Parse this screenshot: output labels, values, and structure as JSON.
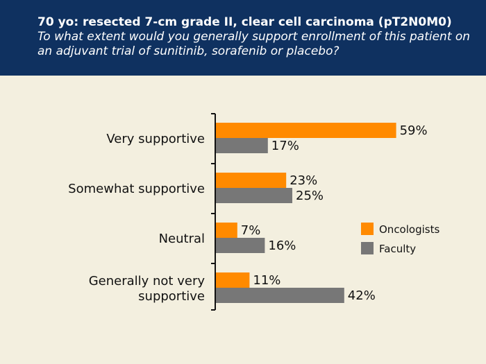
{
  "header": {
    "title": "70 yo: resected 7-cm grade II, clear cell carcinoma (pT2N0M0)",
    "subtitle": "To what extent would you generally support enrollment of this patient on an adjuvant trial of sunitinib, sorafenib or placebo?"
  },
  "colors": {
    "background": "#f3efdf",
    "header_bg": "#0f3160",
    "oncologists": "#ff8a00",
    "faculty": "#777777"
  },
  "chart_data": {
    "type": "bar",
    "orientation": "horizontal",
    "categories": [
      [
        "Very supportive"
      ],
      [
        "Somewhat supportive"
      ],
      [
        "Neutral"
      ],
      [
        "Generally not very",
        "supportive"
      ]
    ],
    "series": [
      {
        "name": "Oncologists",
        "values": [
          59,
          23,
          7,
          11
        ],
        "labels": [
          "59%",
          "23%",
          "7%",
          "11%"
        ]
      },
      {
        "name": "Faculty",
        "values": [
          17,
          25,
          16,
          42
        ],
        "labels": [
          "17%",
          "25%",
          "16%",
          "42%"
        ]
      }
    ],
    "unit": "%",
    "xlim": [
      0,
      100
    ],
    "legend_position": "right",
    "grid": false
  }
}
